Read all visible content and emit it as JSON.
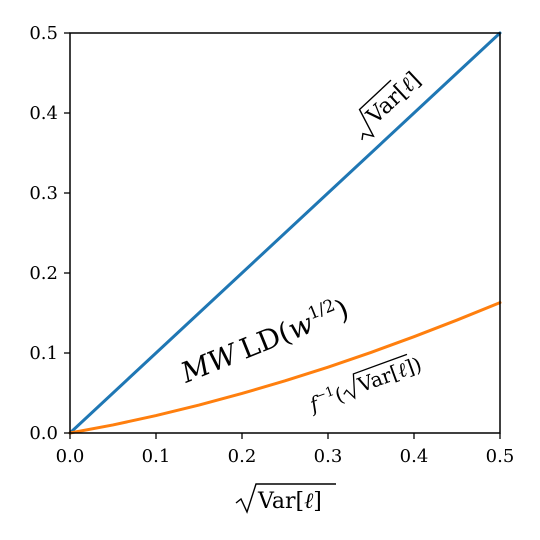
{
  "chart_data": {
    "type": "line",
    "title": "",
    "xlabel": "√Var[ℓ]",
    "ylabel": "",
    "xlim": [
      0.0,
      0.5
    ],
    "ylim": [
      0.0,
      0.5
    ],
    "xticks": [
      "0.0",
      "0.1",
      "0.2",
      "0.3",
      "0.4",
      "0.5"
    ],
    "yticks": [
      "0.0",
      "0.1",
      "0.2",
      "0.3",
      "0.4",
      "0.5"
    ],
    "grid": false,
    "legend": "none",
    "series": [
      {
        "name": "√Var[ℓ]",
        "color": "#1f77b4",
        "x": [
          0.0,
          0.1,
          0.2,
          0.3,
          0.4,
          0.5
        ],
        "y": [
          0.0,
          0.1,
          0.2,
          0.3,
          0.4,
          0.5
        ]
      },
      {
        "name": "f⁻¹(√Var[ℓ])",
        "color": "#ff7f0e",
        "x": [
          0.0,
          0.05,
          0.1,
          0.15,
          0.2,
          0.25,
          0.3,
          0.35,
          0.4,
          0.45,
          0.5
        ],
        "y": [
          0.0,
          0.0101,
          0.0218,
          0.0349,
          0.0494,
          0.0652,
          0.0823,
          0.1007,
          0.1204,
          0.1412,
          0.163
        ]
      }
    ],
    "annotations": {
      "region_label": "MW LD(w1/2)"
    }
  }
}
